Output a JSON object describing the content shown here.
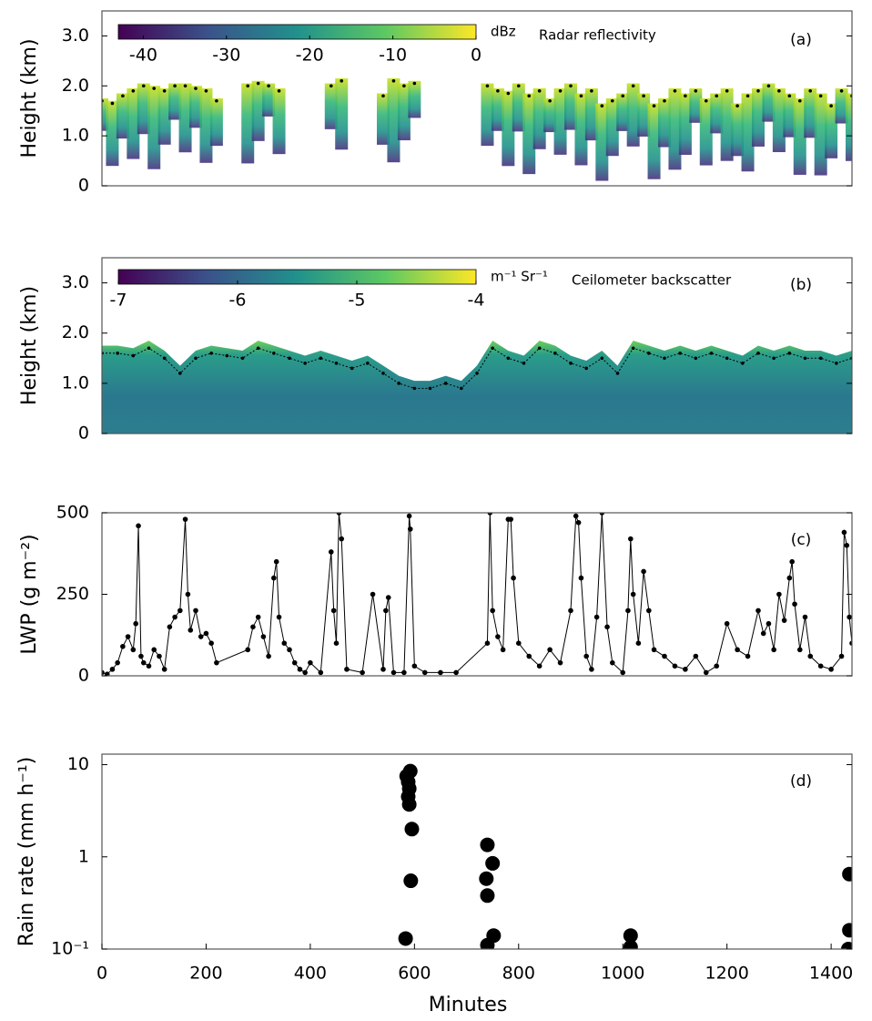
{
  "chart_data": [
    {
      "type": "heatmap",
      "panel": "(a)",
      "title": "Radar reflectivity",
      "ylabel": "Height (km)",
      "colorbar": {
        "label": "dBz",
        "lim": [
          -43,
          0
        ],
        "ticks": [
          -40,
          -30,
          -20,
          -10,
          0
        ]
      },
      "xlim": [
        0,
        1440
      ],
      "ylim": [
        0,
        3.5
      ],
      "yticks": [
        0,
        {
          "value": 1,
          "label": "1.0"
        },
        {
          "value": 2,
          "label": "2.0"
        },
        {
          "value": 3,
          "label": "3.0"
        }
      ],
      "x": [
        0,
        20,
        40,
        60,
        80,
        100,
        120,
        140,
        160,
        180,
        200,
        220,
        280,
        300,
        320,
        340,
        440,
        460,
        540,
        560,
        580,
        600,
        740,
        760,
        780,
        800,
        820,
        840,
        860,
        880,
        900,
        920,
        940,
        960,
        980,
        1000,
        1020,
        1040,
        1060,
        1080,
        1100,
        1120,
        1140,
        1160,
        1180,
        1200,
        1220,
        1240,
        1260,
        1280,
        1300,
        1320,
        1340,
        1360,
        1380,
        1400,
        1420,
        1440
      ],
      "values": [
        1.7,
        1.65,
        1.8,
        1.9,
        2.0,
        1.95,
        1.9,
        2.0,
        2.0,
        1.95,
        1.9,
        1.7,
        2.0,
        2.05,
        2.0,
        1.9,
        2.0,
        2.1,
        1.8,
        2.1,
        2.0,
        2.05,
        2.0,
        1.9,
        1.85,
        2.0,
        1.8,
        1.9,
        1.7,
        1.9,
        2.0,
        1.8,
        1.9,
        1.6,
        1.7,
        1.8,
        2.0,
        1.8,
        1.6,
        1.7,
        1.9,
        1.8,
        1.9,
        1.7,
        1.8,
        1.9,
        1.6,
        1.8,
        1.9,
        2.0,
        1.9,
        1.8,
        1.7,
        1.9,
        1.8,
        1.6,
        1.9,
        1.8
      ]
    },
    {
      "type": "area",
      "panel": "(b)",
      "title": "Ceilometer backscatter",
      "ylabel": "Height (km)",
      "colorbar": {
        "label": "m⁻¹ Sr⁻¹",
        "lim": [
          -7,
          -4
        ],
        "ticks": [
          -7,
          -6,
          -5,
          -4
        ]
      },
      "xlim": [
        0,
        1440
      ],
      "ylim": [
        0,
        3.5
      ],
      "yticks": [
        0,
        {
          "value": 1,
          "label": "1.0"
        },
        {
          "value": 2,
          "label": "2.0"
        },
        {
          "value": 3,
          "label": "3.0"
        }
      ],
      "x": [
        0,
        30,
        60,
        90,
        120,
        150,
        180,
        210,
        240,
        270,
        300,
        330,
        360,
        390,
        420,
        450,
        480,
        510,
        540,
        570,
        600,
        630,
        660,
        690,
        720,
        750,
        780,
        810,
        840,
        870,
        900,
        930,
        960,
        990,
        1020,
        1050,
        1080,
        1110,
        1140,
        1170,
        1200,
        1230,
        1260,
        1290,
        1320,
        1350,
        1380,
        1410,
        1440
      ],
      "values": [
        1.6,
        1.6,
        1.55,
        1.7,
        1.5,
        1.2,
        1.5,
        1.6,
        1.55,
        1.5,
        1.7,
        1.6,
        1.5,
        1.4,
        1.5,
        1.4,
        1.3,
        1.4,
        1.2,
        1.0,
        0.9,
        0.9,
        1.0,
        0.9,
        1.2,
        1.7,
        1.5,
        1.4,
        1.7,
        1.6,
        1.4,
        1.3,
        1.5,
        1.2,
        1.7,
        1.6,
        1.5,
        1.6,
        1.5,
        1.6,
        1.5,
        1.4,
        1.6,
        1.5,
        1.6,
        1.5,
        1.5,
        1.4,
        1.5
      ]
    },
    {
      "type": "line",
      "panel": "(c)",
      "ylabel": "LWP (g  m⁻²)",
      "xlim": [
        0,
        1440
      ],
      "ylim": [
        0,
        500
      ],
      "yticks": [
        0,
        250,
        500
      ],
      "x": [
        0,
        10,
        20,
        30,
        40,
        50,
        60,
        65,
        70,
        75,
        80,
        90,
        100,
        110,
        120,
        130,
        140,
        150,
        160,
        165,
        170,
        180,
        190,
        200,
        210,
        220,
        280,
        290,
        300,
        310,
        320,
        330,
        335,
        340,
        350,
        360,
        370,
        380,
        390,
        400,
        420,
        440,
        445,
        450,
        455,
        460,
        470,
        500,
        520,
        540,
        545,
        550,
        560,
        580,
        590,
        592,
        600,
        620,
        650,
        680,
        740,
        745,
        750,
        760,
        770,
        780,
        785,
        790,
        800,
        820,
        840,
        860,
        880,
        900,
        910,
        915,
        920,
        930,
        940,
        950,
        960,
        970,
        980,
        1000,
        1010,
        1015,
        1020,
        1030,
        1040,
        1050,
        1060,
        1080,
        1100,
        1120,
        1140,
        1160,
        1180,
        1200,
        1220,
        1240,
        1260,
        1270,
        1280,
        1290,
        1300,
        1310,
        1320,
        1325,
        1330,
        1340,
        1350,
        1360,
        1380,
        1400,
        1420,
        1425,
        1430,
        1435,
        1440
      ],
      "values": [
        10,
        5,
        20,
        40,
        90,
        120,
        80,
        160,
        460,
        60,
        40,
        30,
        80,
        60,
        20,
        150,
        180,
        200,
        480,
        250,
        140,
        200,
        120,
        130,
        100,
        40,
        80,
        150,
        180,
        120,
        60,
        300,
        350,
        180,
        100,
        80,
        40,
        20,
        10,
        40,
        10,
        380,
        200,
        100,
        500,
        420,
        20,
        10,
        250,
        20,
        200,
        240,
        10,
        10,
        490,
        450,
        30,
        10,
        10,
        10,
        100,
        500,
        200,
        120,
        80,
        480,
        480,
        300,
        100,
        60,
        30,
        80,
        40,
        200,
        490,
        470,
        300,
        60,
        20,
        180,
        500,
        150,
        40,
        10,
        200,
        420,
        250,
        100,
        320,
        200,
        80,
        60,
        30,
        20,
        60,
        10,
        30,
        160,
        80,
        60,
        200,
        130,
        160,
        80,
        250,
        170,
        300,
        350,
        220,
        80,
        180,
        60,
        30,
        20,
        60,
        440,
        400,
        180,
        100
      ]
    },
    {
      "type": "scatter",
      "panel": "(d)",
      "ylabel": "Rain  rate (mm h⁻¹)",
      "xlabel": "Minutes",
      "xlim": [
        0,
        1440
      ],
      "ylim": [
        0.1,
        13
      ],
      "log_y": true,
      "yticks": [
        {
          "value": 0.1,
          "label": "10⁻¹"
        },
        1,
        10
      ],
      "xticks": [
        0,
        200,
        400,
        600,
        800,
        1000,
        1200,
        1400
      ],
      "x": [
        585,
        588,
        590,
        588,
        590,
        592,
        595,
        593,
        583,
        740,
        738,
        740,
        750,
        752,
        740,
        1015,
        1015,
        1435,
        1435,
        1433
      ],
      "values": [
        7.5,
        6.5,
        5.5,
        4.5,
        3.7,
        8.5,
        2,
        0.55,
        0.13,
        1.35,
        0.58,
        0.38,
        0.85,
        0.14,
        0.11,
        0.14,
        0.105,
        0.65,
        0.16,
        0.1
      ]
    }
  ]
}
